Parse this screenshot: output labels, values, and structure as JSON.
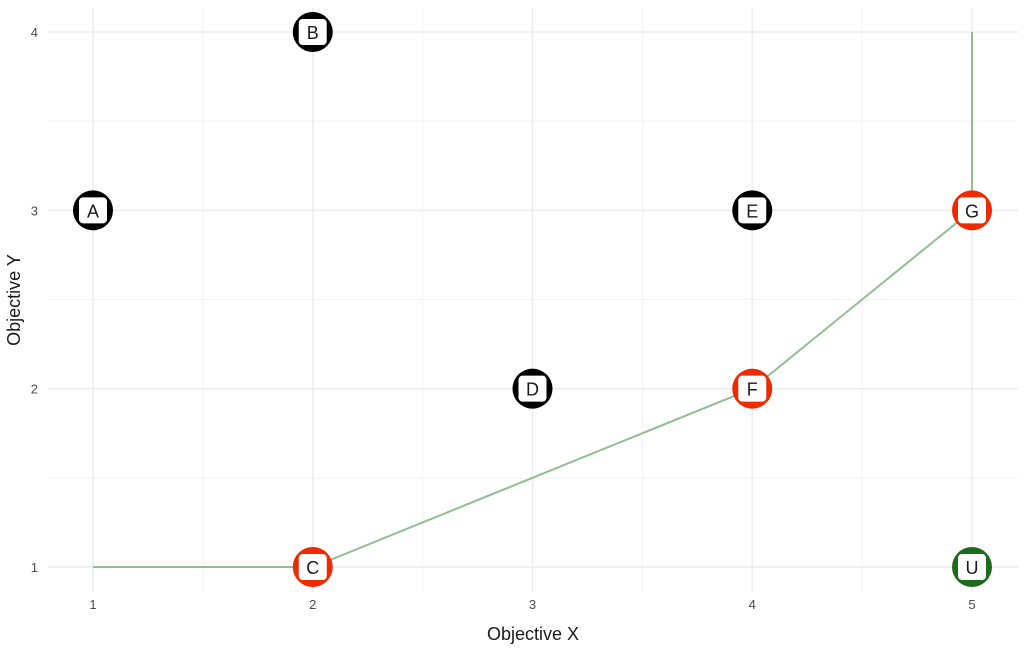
{
  "chart_data": {
    "type": "scatter",
    "title": "",
    "xlabel": "Objective X",
    "ylabel": "Objective Y",
    "xlim": [
      1,
      5
    ],
    "ylim": [
      1,
      4
    ],
    "x_ticks": [
      1,
      2,
      3,
      4,
      5
    ],
    "y_ticks": [
      1,
      2,
      3,
      4
    ],
    "grid": true,
    "legend": "none",
    "points": [
      {
        "label": "A",
        "x": 1,
        "y": 3,
        "color": "#000000"
      },
      {
        "label": "B",
        "x": 2,
        "y": 4,
        "color": "#000000"
      },
      {
        "label": "C",
        "x": 2,
        "y": 1,
        "color": "#ee2a00"
      },
      {
        "label": "D",
        "x": 3,
        "y": 2,
        "color": "#000000"
      },
      {
        "label": "E",
        "x": 4,
        "y": 3,
        "color": "#000000"
      },
      {
        "label": "F",
        "x": 4,
        "y": 2,
        "color": "#ee2a00"
      },
      {
        "label": "G",
        "x": 5,
        "y": 3,
        "color": "#ee2a00"
      },
      {
        "label": "U",
        "x": 5,
        "y": 1,
        "color": "#1e6b1e"
      }
    ],
    "front_line": {
      "color": "#8fbf8f",
      "points": [
        [
          1,
          1
        ],
        [
          2,
          1
        ],
        [
          3,
          1.5
        ],
        [
          4,
          2
        ],
        [
          5,
          3
        ],
        [
          5,
          4
        ]
      ]
    }
  }
}
